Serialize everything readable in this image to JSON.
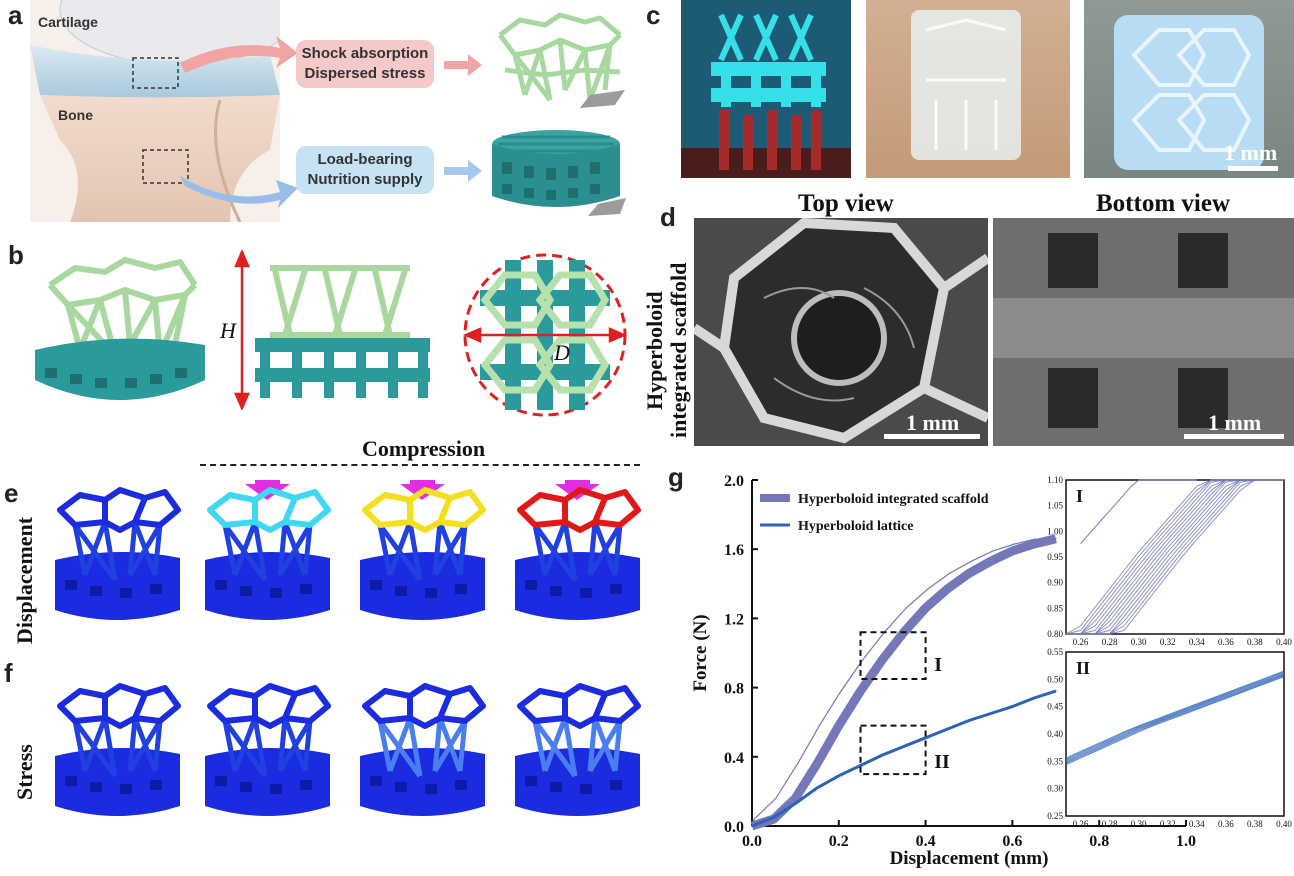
{
  "panel_labels": {
    "a": "a",
    "b": "b",
    "c": "c",
    "d": "d",
    "e": "e",
    "f": "f",
    "g": "g"
  },
  "panel_a": {
    "cartilage_label": "Cartilage",
    "bone_label": "Bone",
    "top_box": {
      "line1": "Shock absorption",
      "line2": "Dispersed stress"
    },
    "bottom_box": {
      "line1": "Load-bearing",
      "line2": "Nutrition supply"
    }
  },
  "panel_b": {
    "height_symbol": "H",
    "diameter_symbol": "D"
  },
  "panel_c": {
    "scale_label": "1 mm"
  },
  "panel_d": {
    "top_view": "Top view",
    "bottom_view": "Bottom view",
    "side_label_line1": "Hyperboloid",
    "side_label_line2": "integrated scaffold",
    "scale_label_left": "1 mm",
    "scale_label_right": "1 mm"
  },
  "panel_ef": {
    "compression": "Compression",
    "row_e_label": "Displacement",
    "row_f_label": "Stress",
    "displacement_top_colors": [
      "#1a2be0",
      "#3fd8f0",
      "#f2e020",
      "#e01818"
    ]
  },
  "chart_data": {
    "type": "line",
    "xlabel": "Displacement (mm)",
    "ylabel": "Force (N)",
    "xlim": [
      0,
      1.0
    ],
    "ylim": [
      0,
      2.0
    ],
    "xticks": [
      "0.0",
      "0.2",
      "0.4",
      "0.6",
      "0.8",
      "1.0"
    ],
    "yticks": [
      "0.0",
      "0.4",
      "0.8",
      "1.2",
      "1.6",
      "2.0"
    ],
    "legend_position": "top-left",
    "series": [
      {
        "name": "Hyperboloid integrated scaffold",
        "color": "#7478b8",
        "x": [
          0.0,
          0.05,
          0.1,
          0.15,
          0.2,
          0.25,
          0.3,
          0.35,
          0.4,
          0.45,
          0.5,
          0.55,
          0.6,
          0.65,
          0.7
        ],
        "y": [
          0.0,
          0.04,
          0.16,
          0.36,
          0.58,
          0.78,
          0.96,
          1.12,
          1.26,
          1.37,
          1.46,
          1.53,
          1.59,
          1.63,
          1.66
        ]
      },
      {
        "name": "Hyperboloid lattice",
        "color": "#2b63b8",
        "x": [
          0.0,
          0.05,
          0.1,
          0.15,
          0.2,
          0.25,
          0.3,
          0.35,
          0.4,
          0.45,
          0.5,
          0.55,
          0.6,
          0.65,
          0.7
        ],
        "y": [
          0.0,
          0.05,
          0.13,
          0.22,
          0.29,
          0.35,
          0.41,
          0.46,
          0.51,
          0.56,
          0.61,
          0.65,
          0.69,
          0.74,
          0.78
        ]
      }
    ],
    "annotations": [
      "I",
      "II"
    ],
    "insets": [
      {
        "label": "I",
        "xlim": [
          0.25,
          0.4
        ],
        "ylim": [
          0.8,
          1.1
        ],
        "xticks": [
          "0.26",
          "0.28",
          "0.30",
          "0.32",
          "0.34",
          "0.36",
          "0.38",
          "0.40"
        ],
        "yticks": [
          "0.80",
          "0.85",
          "0.90",
          "0.95",
          "1.00",
          "1.05",
          "1.10"
        ]
      },
      {
        "label": "II",
        "xlim": [
          0.25,
          0.4
        ],
        "ylim": [
          0.25,
          0.55
        ],
        "xticks": [
          "0.26",
          "0.28",
          "0.30",
          "0.32",
          "0.34",
          "0.36",
          "0.38",
          "0.40"
        ],
        "yticks": [
          "0.25",
          "0.30",
          "0.35",
          "0.40",
          "0.45",
          "0.50",
          "0.55"
        ]
      }
    ]
  }
}
